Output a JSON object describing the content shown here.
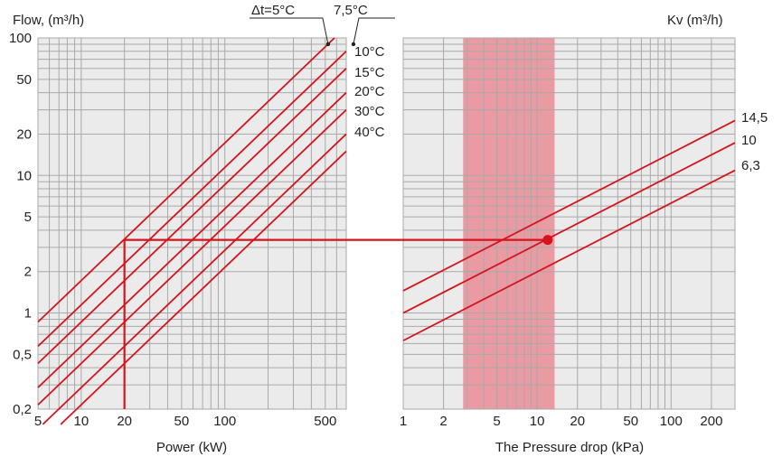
{
  "chart_data": [
    {
      "type": "line",
      "ylabel": "Flow, (m³/h)",
      "xlabel": "Power (kW)",
      "x_scale": "log",
      "y_scale": "log",
      "xlim": [
        5,
        700
      ],
      "ylim": [
        0.2,
        100
      ],
      "x_ticks": [
        "5",
        "10",
        "20",
        "50",
        "100",
        "500"
      ],
      "y_ticks": [
        "100",
        "50",
        "20",
        "10",
        "5",
        "2",
        "1",
        "0,5",
        "0,2"
      ],
      "grid": true,
      "series": [
        {
          "name": "Δt=5°C",
          "x": [
            5,
            580
          ],
          "y": [
            0.86,
            100
          ]
        },
        {
          "name": "7,5°C",
          "x": [
            5,
            700
          ],
          "y": [
            0.573,
            80
          ]
        },
        {
          "name": "10°C",
          "x": [
            5,
            700
          ],
          "y": [
            0.43,
            60
          ]
        },
        {
          "name": "15°C",
          "x": [
            5,
            700
          ],
          "y": [
            0.287,
            40
          ]
        },
        {
          "name": "20°C",
          "x": [
            5,
            700
          ],
          "y": [
            0.215,
            30
          ]
        },
        {
          "name": "30°C",
          "x": [
            5.4,
            700
          ],
          "y": [
            0.155,
            20
          ]
        },
        {
          "name": "40°C",
          "x": [
            7.2,
            700
          ],
          "y": [
            0.155,
            15
          ]
        }
      ],
      "annotation": {
        "power": 20,
        "flow": 3.4
      }
    },
    {
      "type": "line",
      "ylabel": "Kv (m³/h)",
      "xlabel": "The Pressure drop (kPa)",
      "x_scale": "log",
      "y_scale": "log",
      "xlim": [
        1,
        300
      ],
      "ylim": [
        0.2,
        100
      ],
      "x_ticks": [
        "1",
        "2",
        "5",
        "10",
        "20",
        "50",
        "100",
        "200"
      ],
      "grid": true,
      "shaded_band": {
        "from": 2.8,
        "to": 13.5,
        "color": "#e87a86"
      },
      "series": [
        {
          "name": "14,5",
          "x": [
            1,
            300
          ],
          "y": [
            1.45,
            25.1
          ]
        },
        {
          "name": "10",
          "x": [
            1,
            300
          ],
          "y": [
            1.0,
            17.3
          ]
        },
        {
          "name": "6,3",
          "x": [
            1,
            300
          ],
          "y": [
            0.63,
            10.9
          ]
        }
      ],
      "operating_point": {
        "pressure_drop": 12,
        "flow": 3.4
      }
    }
  ],
  "colors": {
    "panel_bg": "#ebebeb",
    "grid": "#a9a9a9",
    "curve": "#d4141c",
    "band": "#e87a86"
  }
}
